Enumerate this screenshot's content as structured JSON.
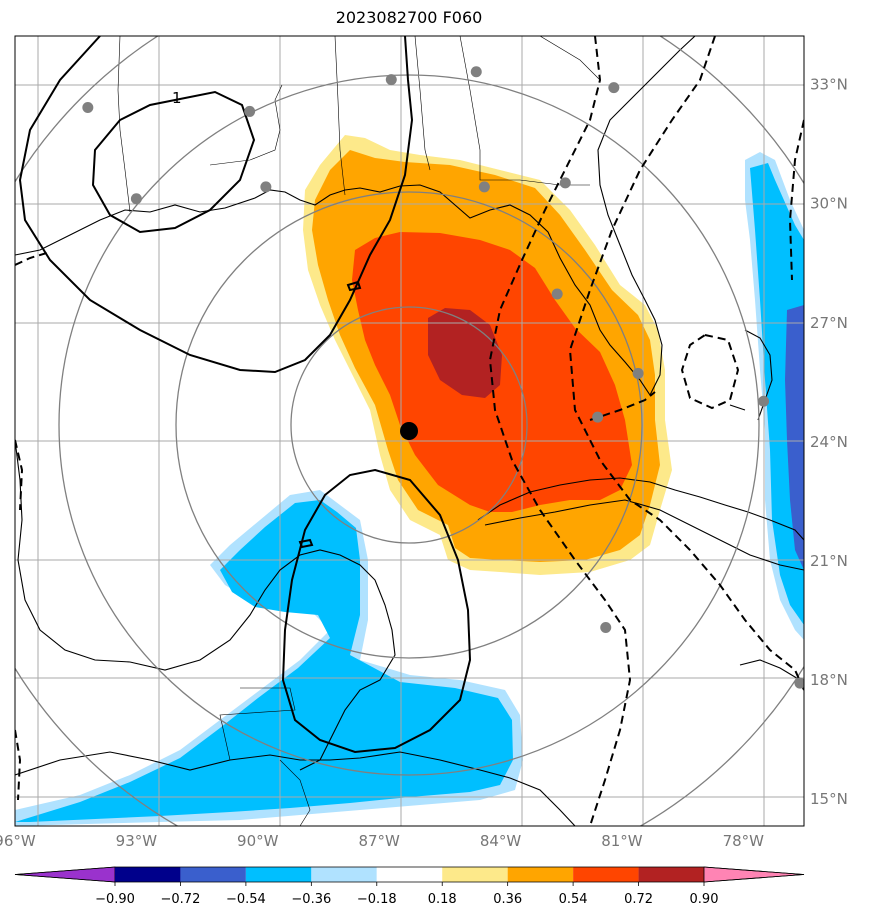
{
  "title": "2023082700 F060",
  "map": {
    "lat_labels": [
      "33°N",
      "30°N",
      "27°N",
      "24°N",
      "21°N",
      "18°N",
      "15°N"
    ],
    "lat_values": [
      33,
      30,
      27,
      24,
      21,
      18,
      15
    ],
    "lon_labels": [
      "96°W",
      "93°W",
      "90°W",
      "87°W",
      "84°W",
      "81°W",
      "78°W"
    ],
    "lon_values": [
      -96,
      -93,
      -90,
      -87,
      -84,
      -81,
      -78
    ],
    "extent": {
      "lon_min": -96.0,
      "lon_max": -76.5,
      "lat_min": 14.3,
      "lat_max": 34.2
    },
    "center": {
      "lon": -86.7,
      "lat": 24.2
    },
    "contour_label": "1",
    "stations": [
      {
        "lon": -94.2,
        "lat": 32.4
      },
      {
        "lon": -93.0,
        "lat": 30.1
      },
      {
        "lon": -90.2,
        "lat": 32.3
      },
      {
        "lon": -86.7,
        "lat": 33.1
      },
      {
        "lon": -84.6,
        "lat": 33.3
      },
      {
        "lon": -81.2,
        "lat": 32.9
      },
      {
        "lon": -89.8,
        "lat": 30.4
      },
      {
        "lon": -84.4,
        "lat": 30.4
      },
      {
        "lon": -82.4,
        "lat": 30.5
      },
      {
        "lon": -82.6,
        "lat": 27.7
      },
      {
        "lon": -80.6,
        "lat": 25.7
      },
      {
        "lon": -81.6,
        "lat": 24.6
      },
      {
        "lon": -77.5,
        "lat": 25.0
      },
      {
        "lon": -81.4,
        "lat": 19.3
      },
      {
        "lon": -76.6,
        "lat": 17.9
      }
    ]
  },
  "colorbar": {
    "colors": [
      "#9a32cd",
      "#00008b",
      "#3a5fcd",
      "#00bfff",
      "#b0e2ff",
      "#ffffff",
      "#fde98a",
      "#ffa500",
      "#ff4500",
      "#b22222",
      "#ff84b4"
    ],
    "labels": [
      "−0.90",
      "−0.72",
      "−0.54",
      "−0.36",
      "−0.18",
      "0.18",
      "0.36",
      "0.54",
      "0.72",
      "0.90"
    ]
  },
  "colors": {
    "blue_fill": "#00bfff",
    "light_blue_fill": "#b0e2ff",
    "dark_blue_fill": "#3a5fcd",
    "yellow_fill": "#fde98a",
    "orange_fill": "#ffa500",
    "red_orange_fill": "#ff4500",
    "dark_red_fill": "#b22222",
    "grid": "#aaaaaa",
    "rings": "#808080",
    "station": "#808080"
  }
}
